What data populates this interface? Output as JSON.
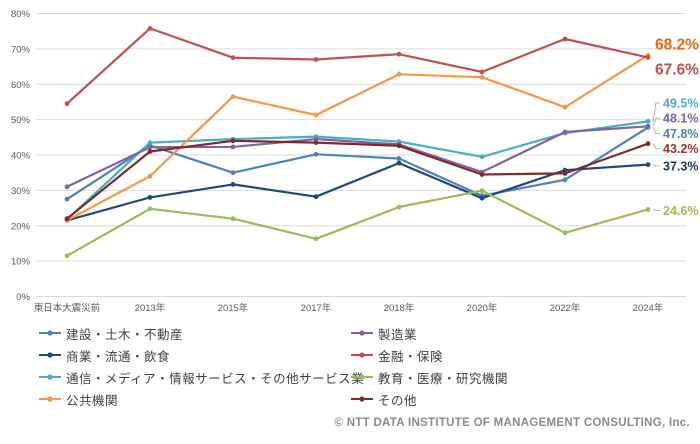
{
  "chart_data": {
    "type": "line",
    "title": "",
    "xlabel": "",
    "ylabel": "",
    "ylim": [
      0,
      80
    ],
    "grid": true,
    "legend_position": "bottom-two-columns",
    "y_ticks": [
      "0%",
      "10%",
      "20%",
      "30%",
      "40%",
      "50%",
      "60%",
      "70%",
      "80%"
    ],
    "categories": [
      "東日本大震災前",
      "2013年",
      "2015年",
      "2017年",
      "2018年",
      "2020年",
      "2022年",
      "2024年"
    ],
    "series": [
      {
        "name": "建設・土木・不動産",
        "color": "#4F81BD",
        "values": [
          27.5,
          42.7,
          35.0,
          40.2,
          39.0,
          28.5,
          33.0,
          47.8
        ],
        "end_label": "47.8%",
        "end_label_color": "#4F81BD",
        "emphasis": false
      },
      {
        "name": "商業・流通・飲食",
        "color": "#1F497D",
        "values": [
          21.5,
          28.0,
          31.7,
          28.2,
          37.7,
          27.8,
          35.7,
          37.3
        ],
        "end_label": "37.3%",
        "end_label_color": "#17375E",
        "emphasis": false
      },
      {
        "name": "通信・メディア・情報サービス・その他サービス業",
        "color": "#4BACC6",
        "values": [
          21.8,
          43.5,
          44.5,
          45.2,
          43.8,
          39.5,
          46.2,
          49.5
        ],
        "end_label": "49.5%",
        "end_label_color": "#4BACC6",
        "emphasis": false
      },
      {
        "name": "公共機関",
        "color": "#F79646",
        "values": [
          21.5,
          34.0,
          56.5,
          51.3,
          62.8,
          62.0,
          53.5,
          68.2
        ],
        "end_label": "68.2%",
        "end_label_color": "#E26B0A",
        "emphasis": true
      },
      {
        "name": "製造業",
        "color": "#8064A2",
        "values": [
          31.0,
          42.2,
          42.3,
          44.5,
          43.0,
          35.2,
          46.5,
          48.1
        ],
        "end_label": "48.1%",
        "end_label_color": "#8064A2",
        "emphasis": false
      },
      {
        "name": "金融・保険",
        "color": "#C0504D",
        "values": [
          54.5,
          75.8,
          67.5,
          67.0,
          68.5,
          63.5,
          72.8,
          67.6
        ],
        "end_label": "67.6%",
        "end_label_color": "#C0504D",
        "emphasis": true
      },
      {
        "name": "教育・医療・研究機関",
        "color": "#9BBB59",
        "values": [
          11.5,
          24.8,
          22.0,
          16.3,
          25.3,
          29.9,
          18.0,
          24.6
        ],
        "end_label": "24.6%",
        "end_label_color": "#9BBB59",
        "emphasis": false
      },
      {
        "name": "その他",
        "color": "#7F2A29",
        "values": [
          22.0,
          41.0,
          44.0,
          43.5,
          42.6,
          34.5,
          34.8,
          43.2
        ],
        "end_label": "43.2%",
        "end_label_color": "#953735",
        "emphasis": false
      }
    ]
  },
  "footer": {
    "copyright": "© NTT DATA INSTITUTE OF MANAGEMENT CONSULTING, Inc."
  }
}
